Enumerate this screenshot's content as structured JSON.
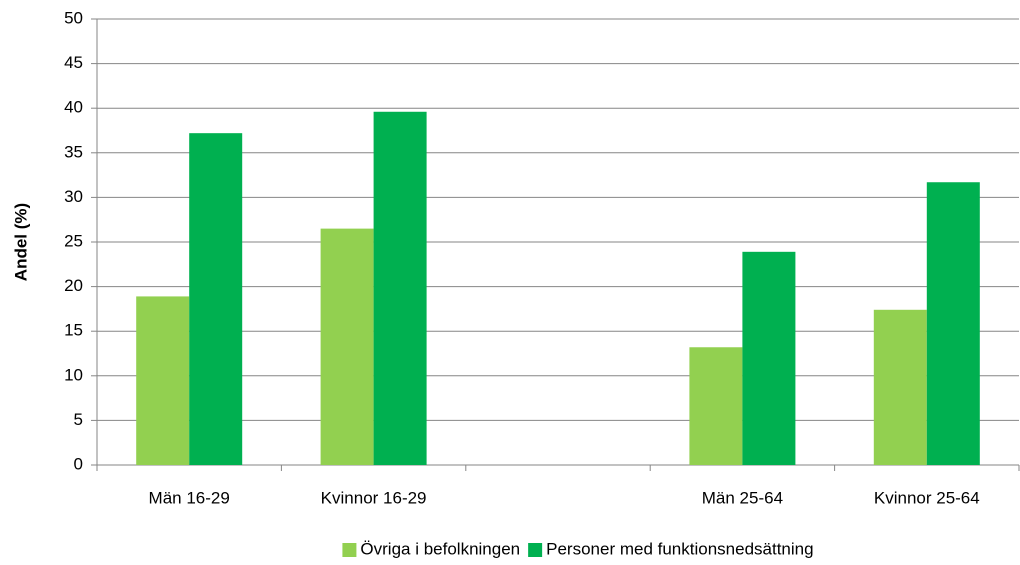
{
  "chart_data": {
    "type": "bar",
    "y_label": "Andel (%)",
    "categories": [
      "Män 16-29",
      "Kvinnor 16-29",
      null,
      "Män 25-64",
      "Kvinnor 25-64"
    ],
    "series": [
      {
        "name": "Övriga i befolkningen",
        "color": "#92d050",
        "values": [
          18.9,
          26.5,
          null,
          13.2,
          17.4
        ]
      },
      {
        "name": "Personer med funktionsnedsättning",
        "color": "#00b050",
        "values": [
          37.2,
          39.6,
          null,
          23.9,
          31.7
        ]
      }
    ],
    "ylim": [
      0,
      50
    ],
    "yticks": [
      0,
      5,
      10,
      15,
      20,
      25,
      30,
      35,
      40,
      45,
      50
    ],
    "grid": true,
    "legend": "bottom"
  }
}
